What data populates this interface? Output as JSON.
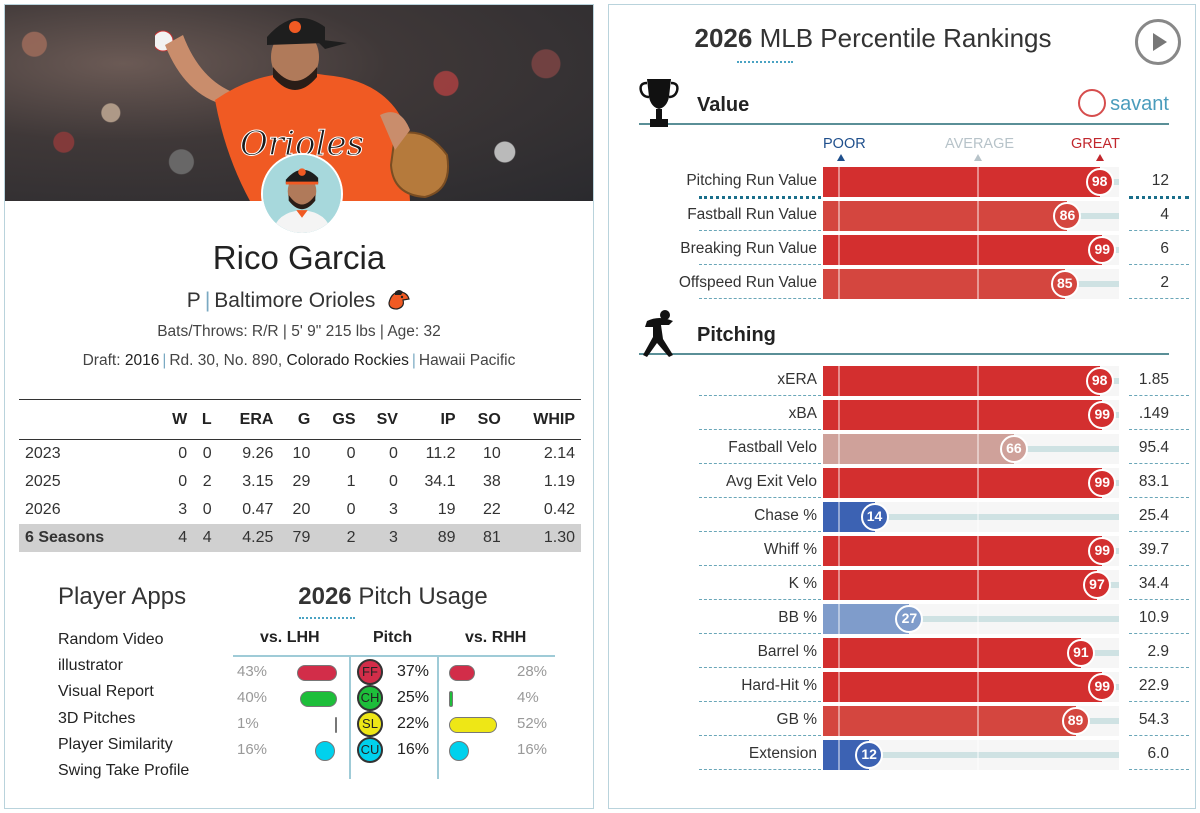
{
  "player": {
    "name": "Rico Garcia",
    "position": "P",
    "team": "Baltimore Orioles",
    "bio": "Bats/Throws: R/R | 5' 9\" 215 lbs | Age: 32",
    "draft_label": "Draft:",
    "draft_year": "2016",
    "draft_pick": "Rd. 30, No. 890,",
    "draft_team": "Colorado Rockies",
    "college": "Hawaii Pacific"
  },
  "stats": {
    "headers": [
      "",
      "W",
      "L",
      "ERA",
      "G",
      "GS",
      "SV",
      "IP",
      "SO",
      "WHIP"
    ],
    "rows": [
      [
        "2023",
        "0",
        "0",
        "9.26",
        "10",
        "0",
        "0",
        "11.2",
        "10",
        "2.14"
      ],
      [
        "2025",
        "0",
        "2",
        "3.15",
        "29",
        "1",
        "0",
        "34.1",
        "38",
        "1.19"
      ],
      [
        "2026",
        "3",
        "0",
        "0.47",
        "20",
        "0",
        "3",
        "19",
        "22",
        "0.42"
      ]
    ],
    "total": [
      "6 Seasons",
      "4",
      "4",
      "4.25",
      "79",
      "2",
      "3",
      "89",
      "81",
      "1.30"
    ]
  },
  "apps": {
    "title": "Player Apps",
    "items": [
      "Random Video",
      "illustrator",
      "Visual Report",
      "3D Pitches",
      "Player Similarity",
      "Swing Take Profile"
    ]
  },
  "usage": {
    "year": "2026",
    "title": "Pitch Usage",
    "col_lhh": "vs. LHH",
    "col_pitch": "Pitch",
    "col_rhh": "vs. RHH",
    "pitches": [
      {
        "code": "FF",
        "color": "#d22d49",
        "lhh": "43%",
        "lhh_frac": 0.43,
        "total": "37%",
        "rhh": "28%",
        "rhh_frac": 0.28
      },
      {
        "code": "CH",
        "color": "#1dbe3a",
        "lhh": "40%",
        "lhh_frac": 0.4,
        "total": "25%",
        "rhh": "4%",
        "rhh_frac": 0.04
      },
      {
        "code": "SL",
        "color": "#eee716",
        "lhh": "1%",
        "lhh_frac": 0.01,
        "total": "22%",
        "rhh": "52%",
        "rhh_frac": 0.52
      },
      {
        "code": "CU",
        "color": "#00d1ed",
        "lhh": "16%",
        "lhh_frac": 0.16,
        "total": "16%",
        "rhh": "16%",
        "rhh_frac": 0.16
      }
    ]
  },
  "rankings": {
    "year": "2026",
    "title": "MLB Percentile Rankings",
    "scale": {
      "poor": "POOR",
      "average": "AVERAGE",
      "great": "GREAT"
    },
    "savant": "savant",
    "sections": [
      {
        "name": "Value",
        "icon": "trophy-icon",
        "rows": [
          {
            "label": "Pitching Run Value",
            "pct": 98,
            "value": "12"
          },
          {
            "label": "Fastball Run Value",
            "pct": 86,
            "value": "4"
          },
          {
            "label": "Breaking Run Value",
            "pct": 99,
            "value": "6"
          },
          {
            "label": "Offspeed Run Value",
            "pct": 85,
            "value": "2"
          }
        ]
      },
      {
        "name": "Pitching",
        "icon": "pitcher-icon",
        "rows": [
          {
            "label": "xERA",
            "pct": 98,
            "value": "1.85"
          },
          {
            "label": "xBA",
            "pct": 99,
            "value": ".149"
          },
          {
            "label": "Fastball Velo",
            "pct": 66,
            "value": "95.4"
          },
          {
            "label": "Avg Exit Velo",
            "pct": 99,
            "value": "83.1"
          },
          {
            "label": "Chase %",
            "pct": 14,
            "value": "25.4"
          },
          {
            "label": "Whiff %",
            "pct": 99,
            "value": "39.7"
          },
          {
            "label": "K %",
            "pct": 97,
            "value": "34.4"
          },
          {
            "label": "BB %",
            "pct": 27,
            "value": "10.9"
          },
          {
            "label": "Barrel %",
            "pct": 91,
            "value": "2.9"
          },
          {
            "label": "Hard-Hit %",
            "pct": 99,
            "value": "22.9"
          },
          {
            "label": "GB %",
            "pct": 89,
            "value": "54.3"
          },
          {
            "label": "Extension",
            "pct": 12,
            "value": "6.0"
          }
        ]
      }
    ]
  }
}
